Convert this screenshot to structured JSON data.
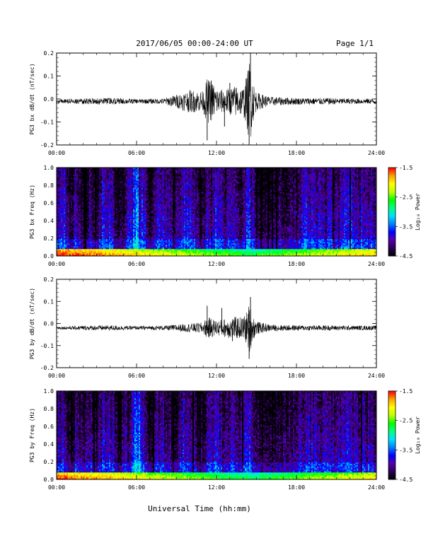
{
  "header": {
    "date_range": "2017/06/05  00:00-24:00 UT",
    "page": "Page 1/1"
  },
  "xlabel": "Universal Time (hh:mm)",
  "x_ticks": [
    "00:00",
    "06:00",
    "12:00",
    "18:00",
    "24:00"
  ],
  "colorbar": {
    "label": "Log₁₀ Power",
    "ticks": [
      "-1.5",
      "-2.5",
      "-3.5",
      "-4.5"
    ],
    "range": [
      -4.5,
      -1.5
    ],
    "colors": [
      "#000000",
      "#2a0050",
      "#5500aa",
      "#0000ff",
      "#0080ff",
      "#00e0ff",
      "#00ff80",
      "#00ff00",
      "#c0ff00",
      "#ffff00",
      "#ffa000",
      "#ff0000"
    ]
  },
  "chart_data": [
    {
      "type": "line",
      "title": "",
      "ylabel": "PG3 bx dB/dt (nT/sec)",
      "xlabel": "",
      "x_range_hours": [
        0,
        24
      ],
      "ylim": [
        -0.2,
        0.2
      ],
      "y_ticks": [
        "0.2",
        "0.1",
        "0.0",
        "-0.1",
        "-0.2"
      ],
      "baseline": -0.01,
      "envelope": {
        "hours": [
          0,
          2,
          4,
          6,
          8,
          9,
          10,
          11,
          11.3,
          11.8,
          12,
          12.5,
          13,
          13.5,
          14,
          14.3,
          14.5,
          14.7,
          15,
          16,
          18,
          20,
          22,
          24
        ],
        "amplitude": [
          0.008,
          0.012,
          0.015,
          0.01,
          0.012,
          0.03,
          0.05,
          0.045,
          0.1,
          0.08,
          0.06,
          0.05,
          0.06,
          0.07,
          0.06,
          0.12,
          0.2,
          0.1,
          0.04,
          0.02,
          0.015,
          0.015,
          0.012,
          0.012
        ]
      },
      "spikes": [
        {
          "hour": 11.3,
          "value": -0.18
        },
        {
          "hour": 11.6,
          "value": 0.08
        },
        {
          "hour": 12.6,
          "value": -0.12
        },
        {
          "hour": 13.0,
          "value": 0.07
        },
        {
          "hour": 14.45,
          "value": -0.22
        },
        {
          "hour": 14.55,
          "value": 0.21
        }
      ]
    },
    {
      "type": "heatmap",
      "title": "",
      "ylabel": "PG3 bx Freq (Hz)",
      "xlabel": "",
      "x_range_hours": [
        0,
        24
      ],
      "ylim": [
        0,
        1.0
      ],
      "y_ticks": [
        "1.0",
        "0.8",
        "0.6",
        "0.4",
        "0.2",
        "0.0"
      ],
      "z_label": "Log₁₀ Power",
      "z_range": [
        -4.5,
        -1.5
      ],
      "activity": {
        "hours": [
          0,
          0.6,
          1.1,
          1.5,
          2,
          2.6,
          3,
          3.5,
          4.2,
          4.8,
          5.5,
          6.2,
          7,
          7.5,
          8.2,
          8.8,
          9.5,
          10.2,
          10.8,
          11.3,
          12,
          12.6,
          13.3,
          13.8,
          14.3,
          14.8,
          15.4,
          16,
          17,
          18,
          18.8,
          19.5,
          20.4,
          21,
          21.8,
          22.6,
          23.2,
          24
        ],
        "level": [
          -3.9,
          -3.7,
          -4.3,
          -3.8,
          -4.2,
          -3.9,
          -4.3,
          -3.6,
          -3.9,
          -4.3,
          -3.5,
          -3.2,
          -4.3,
          -3.7,
          -3.8,
          -4.2,
          -3.6,
          -3.8,
          -4.3,
          -3.8,
          -3.6,
          -4.0,
          -3.7,
          -4.1,
          -3.5,
          -3.9,
          -4.3,
          -4.2,
          -4.1,
          -4.0,
          -3.6,
          -3.8,
          -3.7,
          -4.0,
          -3.5,
          -3.9,
          -3.7,
          -3.9
        ]
      },
      "low_freq_boost": -2.6,
      "peak_hour": 14.5
    },
    {
      "type": "line",
      "title": "",
      "ylabel": "PG3 by dB/dt (nT/sec)",
      "xlabel": "",
      "x_range_hours": [
        0,
        24
      ],
      "ylim": [
        -0.2,
        0.2
      ],
      "y_ticks": [
        "0.2",
        "0.1",
        "0.0",
        "-0.1",
        "-0.2"
      ],
      "baseline": -0.02,
      "envelope": {
        "hours": [
          0,
          2,
          4,
          6,
          8,
          9,
          10,
          11,
          11.3,
          11.8,
          12,
          12.5,
          13,
          13.5,
          14,
          14.3,
          14.5,
          14.7,
          15,
          16,
          18,
          20,
          22,
          24
        ],
        "amplitude": [
          0.006,
          0.01,
          0.012,
          0.008,
          0.01,
          0.015,
          0.02,
          0.025,
          0.05,
          0.04,
          0.035,
          0.04,
          0.05,
          0.05,
          0.05,
          0.08,
          0.12,
          0.06,
          0.03,
          0.015,
          0.012,
          0.012,
          0.01,
          0.01
        ]
      },
      "spikes": [
        {
          "hour": 11.3,
          "value": 0.08
        },
        {
          "hour": 11.4,
          "value": -0.06
        },
        {
          "hour": 12.4,
          "value": 0.07
        },
        {
          "hour": 13.2,
          "value": -0.08
        },
        {
          "hour": 14.45,
          "value": -0.16
        },
        {
          "hour": 14.55,
          "value": 0.12
        }
      ]
    },
    {
      "type": "heatmap",
      "title": "",
      "ylabel": "PG3 by Freq (Hz)",
      "xlabel": "",
      "x_range_hours": [
        0,
        24
      ],
      "ylim": [
        0,
        1.0
      ],
      "y_ticks": [
        "1.0",
        "0.8",
        "0.6",
        "0.4",
        "0.2",
        "0.0"
      ],
      "z_label": "Log₁₀ Power",
      "z_range": [
        -4.5,
        -1.5
      ],
      "activity": {
        "hours": [
          0,
          0.6,
          1.1,
          1.5,
          2,
          2.6,
          3,
          3.5,
          4.2,
          4.8,
          5.5,
          6.2,
          7,
          7.5,
          8.2,
          8.8,
          9.5,
          10.2,
          10.8,
          11.3,
          12,
          12.6,
          13.3,
          13.8,
          14.3,
          14.8,
          15.4,
          16,
          17,
          18,
          18.8,
          19.5,
          20.4,
          21,
          21.8,
          22.6,
          23.2,
          24
        ],
        "level": [
          -3.9,
          -3.8,
          -4.3,
          -3.8,
          -4.2,
          -3.9,
          -4.3,
          -3.7,
          -3.9,
          -4.3,
          -3.6,
          -3.3,
          -4.3,
          -3.8,
          -3.9,
          -4.2,
          -3.7,
          -3.9,
          -4.3,
          -3.9,
          -3.7,
          -4.0,
          -3.8,
          -4.1,
          -3.6,
          -3.9,
          -4.3,
          -4.2,
          -4.1,
          -4.0,
          -3.7,
          -3.9,
          -3.8,
          -4.0,
          -3.6,
          -3.9,
          -3.8,
          -3.9
        ]
      },
      "low_freq_boost": -2.7,
      "peak_hour": 14.5
    }
  ]
}
